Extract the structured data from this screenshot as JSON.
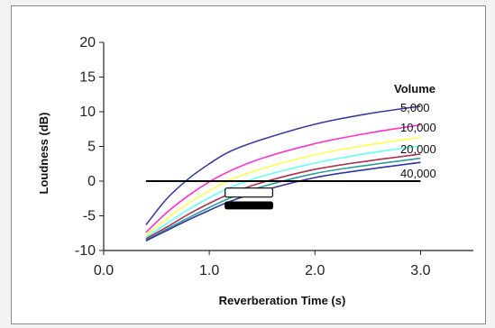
{
  "chart_data": {
    "type": "line",
    "xlabel": "Reverberation Time (s)",
    "ylabel": "Loudness (dB)",
    "xlim": [
      0,
      3.5
    ],
    "ylim": [
      -10,
      20
    ],
    "x_ticks": [
      "0.0",
      "1.0",
      "2.0",
      "3.0"
    ],
    "y_ticks": [
      "-10",
      "-5",
      "0",
      "5",
      "10",
      "15",
      "20"
    ],
    "legend_title": "Volume",
    "series_labels": [
      "5,000",
      "10,000",
      "20,000",
      "40,000"
    ],
    "grid": false,
    "reference_line": {
      "y": 0,
      "x_range": [
        0.4,
        3.0
      ],
      "color": "#000000"
    },
    "box_markers": [
      {
        "x_range": [
          1.15,
          1.6
        ],
        "y_range": [
          -2.3,
          -1.0
        ],
        "fill": "#ffffff",
        "stroke": "#000000"
      },
      {
        "x_range": [
          1.15,
          1.6
        ],
        "y_range": [
          -4.0,
          -3.0
        ],
        "fill": "#000000",
        "stroke": "#000000"
      }
    ],
    "series": [
      {
        "color": "#3b3b9e",
        "x": [
          0.4,
          0.6,
          0.8,
          1.0,
          1.2,
          1.5,
          2.0,
          2.5,
          3.0
        ],
        "y": [
          -6.3,
          -2.5,
          0.3,
          2.5,
          4.3,
          6.0,
          8.2,
          9.7,
          10.8
        ]
      },
      {
        "color": "#ff33cc",
        "x": [
          0.4,
          0.6,
          0.8,
          1.0,
          1.2,
          1.5,
          2.0,
          2.5,
          3.0
        ],
        "y": [
          -7.4,
          -4.5,
          -2.1,
          -0.1,
          1.5,
          3.3,
          5.4,
          6.9,
          8.1
        ]
      },
      {
        "color": "#ffff55",
        "x": [
          0.4,
          0.6,
          0.8,
          1.0,
          1.2,
          1.5,
          2.0,
          2.5,
          3.0
        ],
        "y": [
          -7.8,
          -5.4,
          -3.2,
          -1.4,
          0.2,
          1.8,
          3.8,
          5.2,
          6.3
        ]
      },
      {
        "color": "#66ffff",
        "x": [
          0.4,
          0.6,
          0.8,
          1.0,
          1.2,
          1.5,
          2.0,
          2.5,
          3.0
        ],
        "y": [
          -8.1,
          -6.1,
          -4.1,
          -2.4,
          -0.9,
          0.7,
          2.6,
          4.0,
          5.1
        ]
      },
      {
        "color": "#b03050",
        "x": [
          0.4,
          0.6,
          0.8,
          1.0,
          1.2,
          1.5,
          2.0,
          2.5,
          3.0
        ],
        "y": [
          -8.3,
          -6.6,
          -4.8,
          -3.2,
          -1.8,
          -0.2,
          1.7,
          2.9,
          3.9
        ]
      },
      {
        "color": "#2d9e9e",
        "x": [
          0.4,
          0.6,
          0.8,
          1.0,
          1.2,
          1.5,
          2.0,
          2.5,
          3.0
        ],
        "y": [
          -8.5,
          -6.9,
          -5.3,
          -3.8,
          -2.4,
          -0.8,
          1.1,
          2.3,
          3.3
        ]
      },
      {
        "color": "#333399",
        "x": [
          0.4,
          0.6,
          0.8,
          1.0,
          1.2,
          1.5,
          2.0,
          2.5,
          3.0
        ],
        "y": [
          -8.6,
          -7.1,
          -5.6,
          -4.2,
          -2.9,
          -1.4,
          0.5,
          1.7,
          2.7
        ]
      }
    ]
  }
}
